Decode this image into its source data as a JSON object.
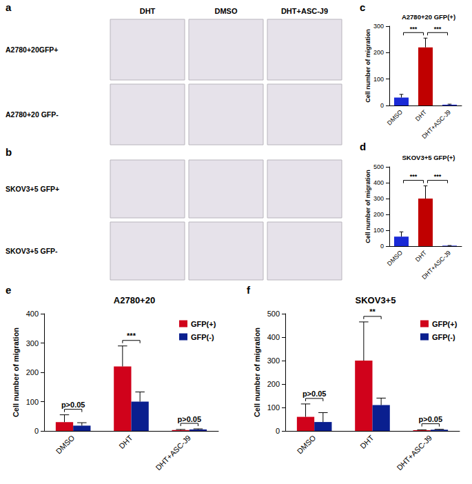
{
  "figure": {
    "image_panels": [
      {
        "letter": "a",
        "columns": [
          "DHT",
          "DMSO",
          "DHT+ASC-J9"
        ],
        "rows": [
          "A2780+20GFP+",
          "A2780+20 GFP-"
        ]
      },
      {
        "letter": "b",
        "rows": [
          "SKOV3+5 GFP+",
          "SKOV3+5 GFP-"
        ]
      }
    ],
    "chart_letters": [
      "c",
      "d",
      "e",
      "f"
    ]
  },
  "chart_data": [
    {
      "type": "bar",
      "title": "A2780+20 GFP(+)",
      "ylabel": "Cell number of migration",
      "categories": [
        "DMSO",
        "DHT",
        "DHT+ASC-J9"
      ],
      "values": [
        30,
        220,
        3
      ],
      "errors": [
        12,
        35,
        2
      ],
      "colors": [
        "#1a2ad6",
        "#c00000",
        "#1a2ad6"
      ],
      "ylim": [
        0,
        300
      ],
      "yticks": [
        0,
        100,
        200,
        300
      ],
      "grid": false,
      "annotations": [
        {
          "text": "***",
          "from": "DMSO",
          "to": "DHT"
        },
        {
          "text": "***",
          "from": "DHT",
          "to": "DHT+ASC-J9"
        }
      ]
    },
    {
      "type": "bar",
      "title": "SKOV3+5 GFP(+)",
      "ylabel": "Cell number of migration",
      "categories": [
        "DMSO",
        "DHT",
        "DHT+ASC-J9"
      ],
      "values": [
        60,
        300,
        3
      ],
      "errors": [
        30,
        80,
        1
      ],
      "colors": [
        "#1a2ad6",
        "#c00000",
        "#1a2ad6"
      ],
      "ylim": [
        0,
        500
      ],
      "yticks": [
        0,
        100,
        200,
        300,
        400,
        500
      ],
      "grid": false,
      "annotations": [
        {
          "text": "***",
          "from": "DMSO",
          "to": "DHT"
        },
        {
          "text": "***",
          "from": "DHT",
          "to": "DHT+ASC-J9"
        }
      ]
    },
    {
      "type": "bar",
      "title": "A2780+20",
      "ylabel": "Cell number of migration",
      "categories": [
        "DMSO",
        "DHT",
        "DHT+ASC-J9"
      ],
      "series": [
        {
          "name": "GFP(+)",
          "color": "#d0021b",
          "values": [
            30,
            220,
            3
          ],
          "errors": [
            25,
            70,
            2
          ]
        },
        {
          "name": "GFP(-)",
          "color": "#0a1f8f",
          "values": [
            18,
            100,
            5
          ],
          "errors": [
            10,
            33,
            2
          ]
        }
      ],
      "ylim": [
        0,
        400
      ],
      "yticks": [
        0,
        100,
        200,
        300,
        400
      ],
      "grid": false,
      "legend": "upper right",
      "annotations": [
        {
          "text": "p>0.05",
          "category": "DMSO"
        },
        {
          "text": "***",
          "category": "DHT"
        },
        {
          "text": "p>0.05",
          "category": "DHT+ASC-J9"
        }
      ]
    },
    {
      "type": "bar",
      "title": "SKOV3+5",
      "ylabel": "Cell number of migration",
      "categories": [
        "DMSO",
        "DHT",
        "DHT+ASC-J9"
      ],
      "series": [
        {
          "name": "GFP(+)",
          "color": "#d0021b",
          "values": [
            60,
            300,
            3
          ],
          "errors": [
            55,
            165,
            2
          ]
        },
        {
          "name": "GFP(-)",
          "color": "#0a1f8f",
          "values": [
            38,
            110,
            5
          ],
          "errors": [
            40,
            30,
            2
          ]
        }
      ],
      "ylim": [
        0,
        500
      ],
      "yticks": [
        0,
        100,
        200,
        300,
        400,
        500
      ],
      "grid": false,
      "legend": "upper right",
      "annotations": [
        {
          "text": "p>0.05",
          "category": "DMSO"
        },
        {
          "text": "**",
          "category": "DHT"
        },
        {
          "text": "p>0.05",
          "category": "DHT+ASC-J9"
        }
      ]
    }
  ]
}
